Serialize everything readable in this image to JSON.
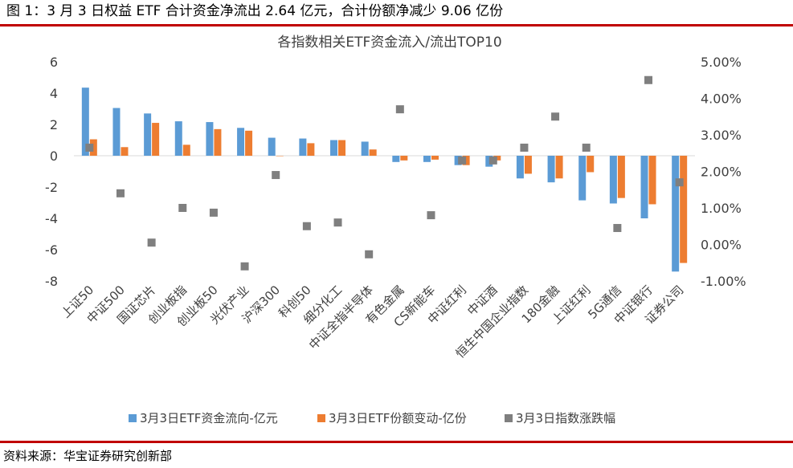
{
  "figure": {
    "caption": "图 1：3 月 3 日权益 ETF 合计资金净流出 2.64 亿元，合计份额净减少 9.06 亿份",
    "source": "资料来源：华宝证券研究创新部"
  },
  "chart_data": {
    "type": "bar",
    "title": "各指数相关ETF资金流入/流出TOP10",
    "categories": [
      "上证50",
      "中证500",
      "国证芯片",
      "创业板指",
      "创业板50",
      "光伏产业",
      "沪深300",
      "科创50",
      "细分化工",
      "中证全指半导体",
      "有色金属",
      "CS新能车",
      "中证红利",
      "中证酒",
      "恒生中国企业指数",
      "180金融",
      "上证红利",
      "5G通信",
      "中证银行",
      "证券公司"
    ],
    "y_left": {
      "ticks": [
        "6",
        "4",
        "2",
        "0",
        "-2",
        "-4",
        "-6",
        "-8"
      ],
      "range": [
        -8,
        6
      ]
    },
    "y_right": {
      "ticks": [
        "5.00%",
        "4.00%",
        "3.00%",
        "2.00%",
        "1.00%",
        "0.00%",
        "-1.00%"
      ],
      "range": [
        -1,
        5
      ]
    },
    "series": [
      {
        "name": "3月3日ETF资金流向-亿元",
        "kind": "bar",
        "axis": "left",
        "color": "#5b9bd5",
        "values": [
          4.35,
          3.05,
          2.7,
          2.2,
          2.15,
          1.78,
          1.15,
          1.1,
          1.0,
          0.9,
          -0.4,
          -0.4,
          -0.6,
          -0.7,
          -1.45,
          -1.7,
          -2.85,
          -3.05,
          -4.0,
          -7.4
        ]
      },
      {
        "name": "3月3日ETF份额变动-亿份",
        "kind": "bar",
        "axis": "left",
        "color": "#ed7d31",
        "values": [
          1.05,
          0.55,
          2.1,
          0.7,
          1.7,
          1.6,
          0.0,
          0.8,
          1.0,
          0.4,
          -0.3,
          -0.25,
          -0.6,
          -0.3,
          -1.15,
          -1.45,
          -1.05,
          -2.7,
          -3.1,
          -6.85
        ]
      },
      {
        "name": "3月3日指数涨跌幅",
        "kind": "marker",
        "axis": "right",
        "color": "#7f7f7f",
        "values": [
          2.65,
          1.4,
          0.05,
          1.0,
          0.87,
          -0.6,
          1.9,
          0.5,
          0.6,
          -0.27,
          3.7,
          0.8,
          2.3,
          2.3,
          2.65,
          3.5,
          2.65,
          0.45,
          4.5,
          1.7
        ]
      }
    ],
    "legend_position": "bottom",
    "grid": false
  }
}
